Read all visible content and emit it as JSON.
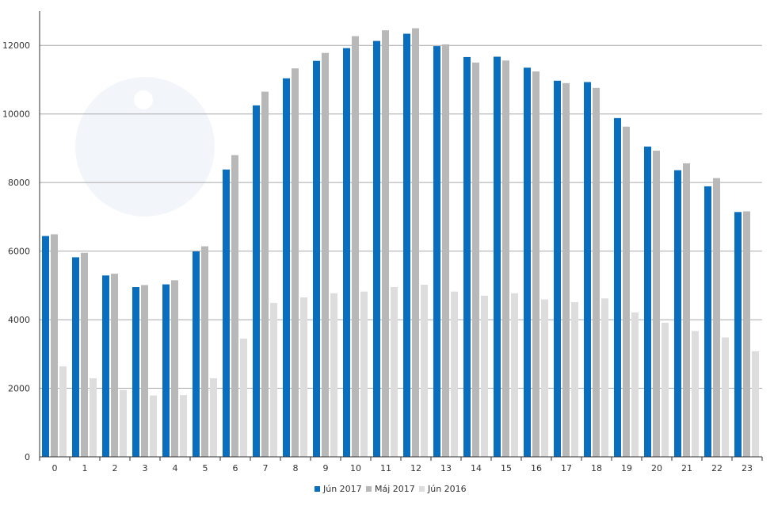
{
  "chart_data": {
    "type": "bar",
    "title": "",
    "xlabel": "",
    "ylabel": "",
    "categories": [
      "0",
      "1",
      "2",
      "3",
      "4",
      "5",
      "6",
      "7",
      "8",
      "9",
      "10",
      "11",
      "12",
      "13",
      "14",
      "15",
      "16",
      "17",
      "18",
      "19",
      "20",
      "21",
      "22",
      "23"
    ],
    "ylim": [
      0,
      13000
    ],
    "yticks": [
      0,
      2000,
      4000,
      6000,
      8000,
      10000,
      12000
    ],
    "grid": true,
    "legend_position": "bottom-center",
    "series": [
      {
        "name": "Jún 2017",
        "color": "#0a6ebf",
        "values": [
          6440,
          5820,
          5290,
          4950,
          5030,
          5990,
          8380,
          10250,
          11040,
          11550,
          11920,
          12130,
          12340,
          11980,
          11660,
          11670,
          11350,
          10970,
          10930,
          9880,
          9050,
          8360,
          7890,
          7140
        ]
      },
      {
        "name": "Máj 2017",
        "color": "#b8b8b8",
        "values": [
          6490,
          5950,
          5340,
          5010,
          5150,
          6140,
          8800,
          10650,
          11330,
          11780,
          12270,
          12440,
          12500,
          12030,
          11500,
          11560,
          11240,
          10900,
          10760,
          9630,
          8930,
          8560,
          8130,
          7160
        ]
      },
      {
        "name": "Jún 2016",
        "color": "#dddddd",
        "values": [
          2640,
          2290,
          1950,
          1790,
          1800,
          2290,
          3450,
          4490,
          4650,
          4770,
          4820,
          4950,
          5020,
          4820,
          4700,
          4770,
          4590,
          4510,
          4620,
          4210,
          3910,
          3670,
          3480,
          3080
        ]
      }
    ]
  }
}
